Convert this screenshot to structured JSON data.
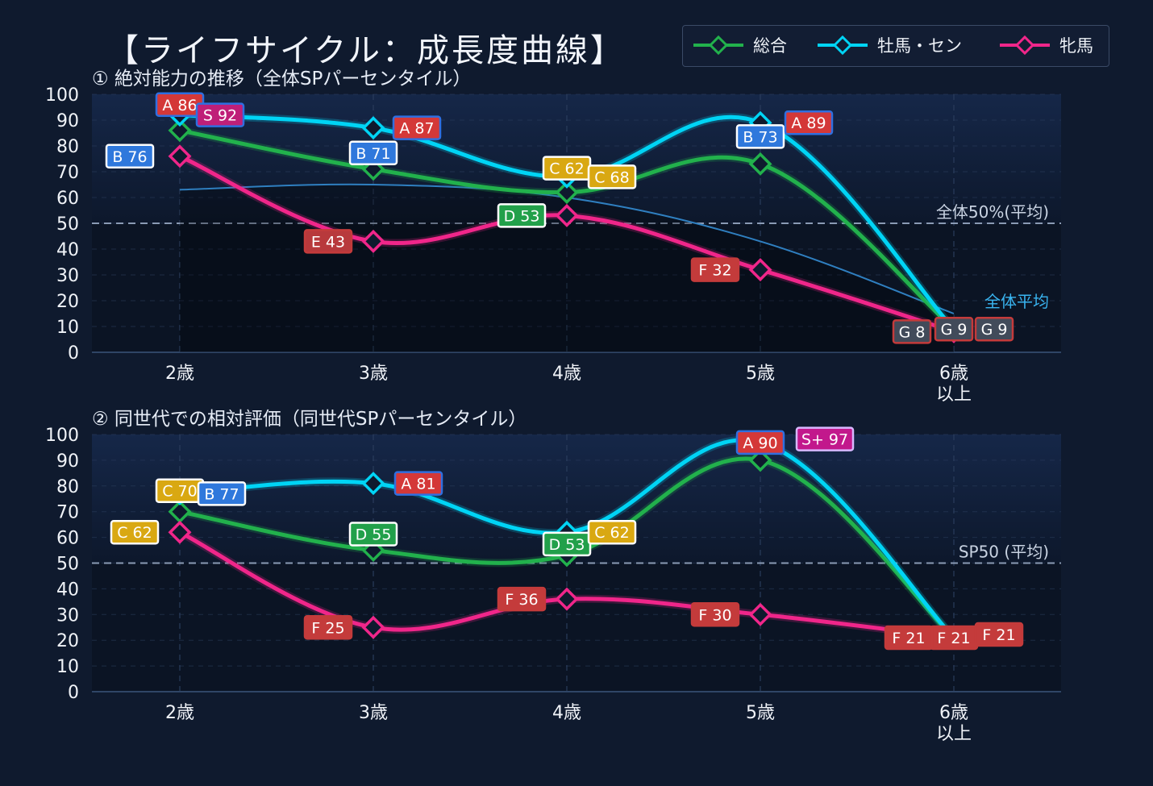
{
  "title": "【ライフサイクル：成長度曲線】",
  "legend": [
    {
      "name": "総合",
      "color": "#22b14c"
    },
    {
      "name": "牡馬・セン",
      "color": "#00d4f5"
    },
    {
      "name": "牝馬",
      "color": "#f0268a"
    }
  ],
  "chart_data": [
    {
      "type": "line",
      "subtitle": "① 絶対能力の推移（全体SPパーセンタイル）",
      "categories": [
        "2歳",
        "3歳",
        "4歳",
        "5歳",
        "6歳\n以上"
      ],
      "ylim": [
        0,
        100
      ],
      "yticks": [
        0,
        10,
        20,
        30,
        40,
        50,
        60,
        70,
        80,
        90,
        100
      ],
      "reference": {
        "value": 50,
        "label": "全体50%(平均)"
      },
      "average": {
        "label": "全体平均",
        "values": [
          63,
          65,
          60,
          43,
          15
        ]
      },
      "series": [
        {
          "name": "総合",
          "color": "#22b14c",
          "values": [
            86,
            71,
            62,
            73,
            9
          ],
          "grades": [
            "A",
            "B",
            "C",
            "B",
            "G"
          ]
        },
        {
          "name": "牡馬・セン",
          "color": "#00d4f5",
          "values": [
            92,
            87,
            68,
            89,
            9
          ],
          "grades": [
            "S",
            "A",
            "C",
            "A",
            "G"
          ]
        },
        {
          "name": "牝馬",
          "color": "#f0268a",
          "values": [
            76,
            43,
            53,
            32,
            8
          ],
          "grades": [
            "B",
            "E",
            "D",
            "F",
            "G"
          ]
        }
      ]
    },
    {
      "type": "line",
      "subtitle": "② 同世代での相対評価（同世代SPパーセンタイル）",
      "categories": [
        "2歳",
        "3歳",
        "4歳",
        "5歳",
        "6歳\n以上"
      ],
      "ylim": [
        0,
        100
      ],
      "yticks": [
        0,
        10,
        20,
        30,
        40,
        50,
        60,
        70,
        80,
        90,
        100
      ],
      "reference": {
        "value": 50,
        "label": "SP50 (平均)"
      },
      "series": [
        {
          "name": "総合",
          "color": "#22b14c",
          "values": [
            70,
            55,
            53,
            90,
            21
          ],
          "grades": [
            "C",
            "D",
            "D",
            "A",
            "F"
          ]
        },
        {
          "name": "牡馬・セン",
          "color": "#00d4f5",
          "values": [
            77,
            81,
            62,
            97,
            21
          ],
          "grades": [
            "B",
            "A",
            "C",
            "S+",
            "F"
          ]
        },
        {
          "name": "牝馬",
          "color": "#f0268a",
          "values": [
            62,
            25,
            36,
            30,
            21
          ],
          "grades": [
            "C",
            "F",
            "F",
            "F",
            "F"
          ]
        }
      ]
    }
  ]
}
